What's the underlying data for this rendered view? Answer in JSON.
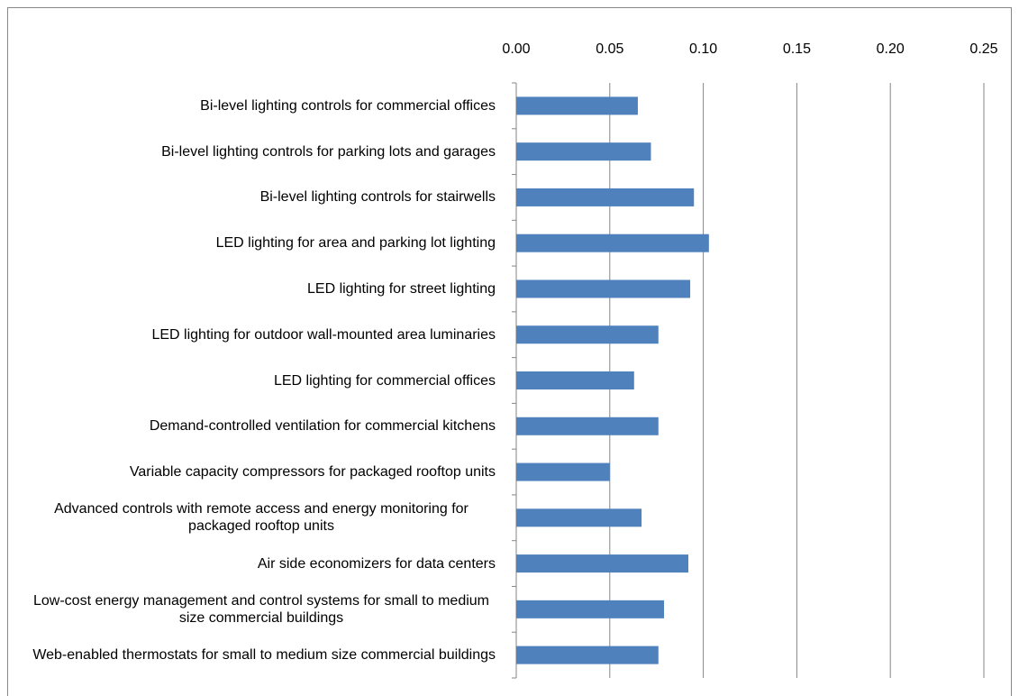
{
  "chart_data": {
    "type": "bar",
    "orientation": "horizontal",
    "categories": [
      "Bi-level lighting controls for commercial offices",
      "Bi-level lighting controls for parking lots and garages",
      "Bi-level lighting controls for stairwells",
      "LED lighting for area and parking lot lighting",
      "LED lighting for street lighting",
      "LED lighting for outdoor wall-mounted area luminaries",
      "LED lighting for commercial offices",
      "Demand-controlled ventilation for commercial kitchens",
      "Variable capacity compressors for packaged rooftop units",
      "Advanced controls with remote access and energy monitoring for packaged rooftop units",
      "Air side economizers for data centers",
      "Low-cost energy management and control systems for small to medium size commercial buildings",
      "Web-enabled thermostats for small to medium size commercial buildings"
    ],
    "values": [
      0.065,
      0.072,
      0.095,
      0.103,
      0.093,
      0.076,
      0.063,
      0.076,
      0.05,
      0.067,
      0.092,
      0.079,
      0.076
    ],
    "color": "#4f81bd",
    "xlim": [
      0,
      0.25
    ],
    "xticks": [
      {
        "value": 0,
        "label": "0.00"
      },
      {
        "value": 0.05,
        "label": "0.05"
      },
      {
        "value": 0.1,
        "label": "0.10"
      },
      {
        "value": 0.15,
        "label": "0.15"
      },
      {
        "value": 0.2,
        "label": "0.20"
      },
      {
        "value": 0.25,
        "label": "0.25"
      }
    ],
    "grid": true
  }
}
